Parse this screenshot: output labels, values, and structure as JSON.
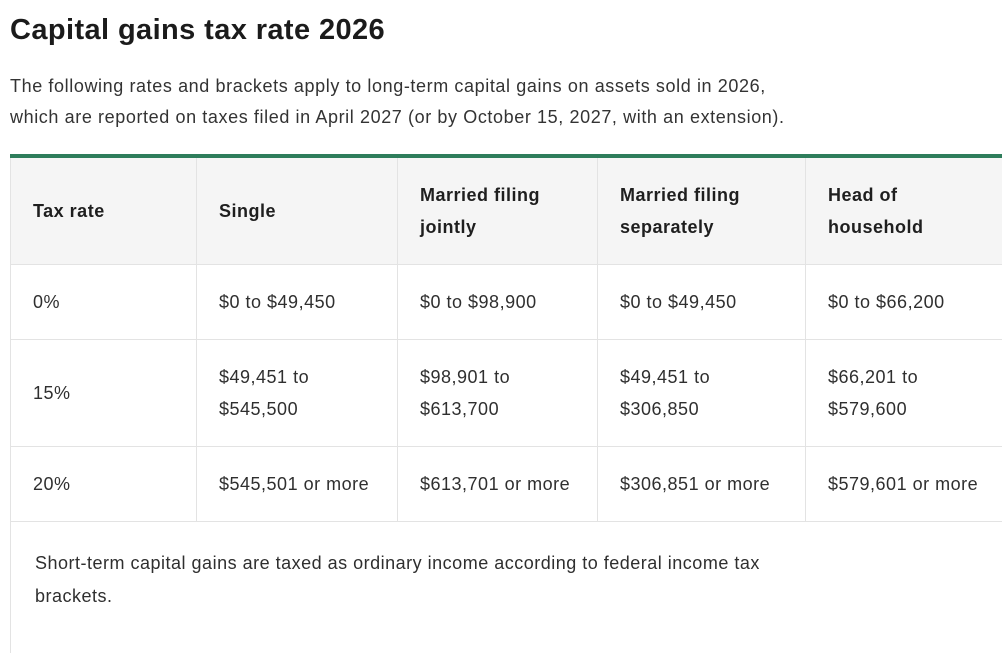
{
  "page": {
    "title": "Capital gains tax rate 2026",
    "intro_lines": [
      "The following rates and brackets apply to long-term capital gains on assets sold in 2026,",
      "which are reported on taxes filed in April 2027 (or by October 15, 2027, with an extension)."
    ]
  },
  "colors": {
    "accent_green": "#2e7d5b",
    "header_background": "#f5f5f5",
    "grid_border": "#e3e3e3",
    "title_text": "#1b1b1b",
    "body_text": "#333333"
  },
  "table": {
    "columns": [
      "Tax rate",
      "Single",
      "Married filing jointly",
      "Married filing separately",
      "Head of household"
    ],
    "rows": [
      [
        "0%",
        "$0 to $49,450",
        "$0 to $98,900",
        "$0 to $49,450",
        "$0 to $66,200"
      ],
      [
        "15%",
        "$49,451 to $545,500",
        "$98,901 to $613,700",
        "$49,451 to $306,850",
        "$66,201 to $579,600"
      ],
      [
        "20%",
        "$545,501 or more",
        "$613,701 or more",
        "$306,851 or more",
        "$579,601 or more"
      ]
    ],
    "footnote_lines": [
      "Short-term capital gains are taxed as ordinary income according to federal income tax",
      "brackets."
    ]
  }
}
